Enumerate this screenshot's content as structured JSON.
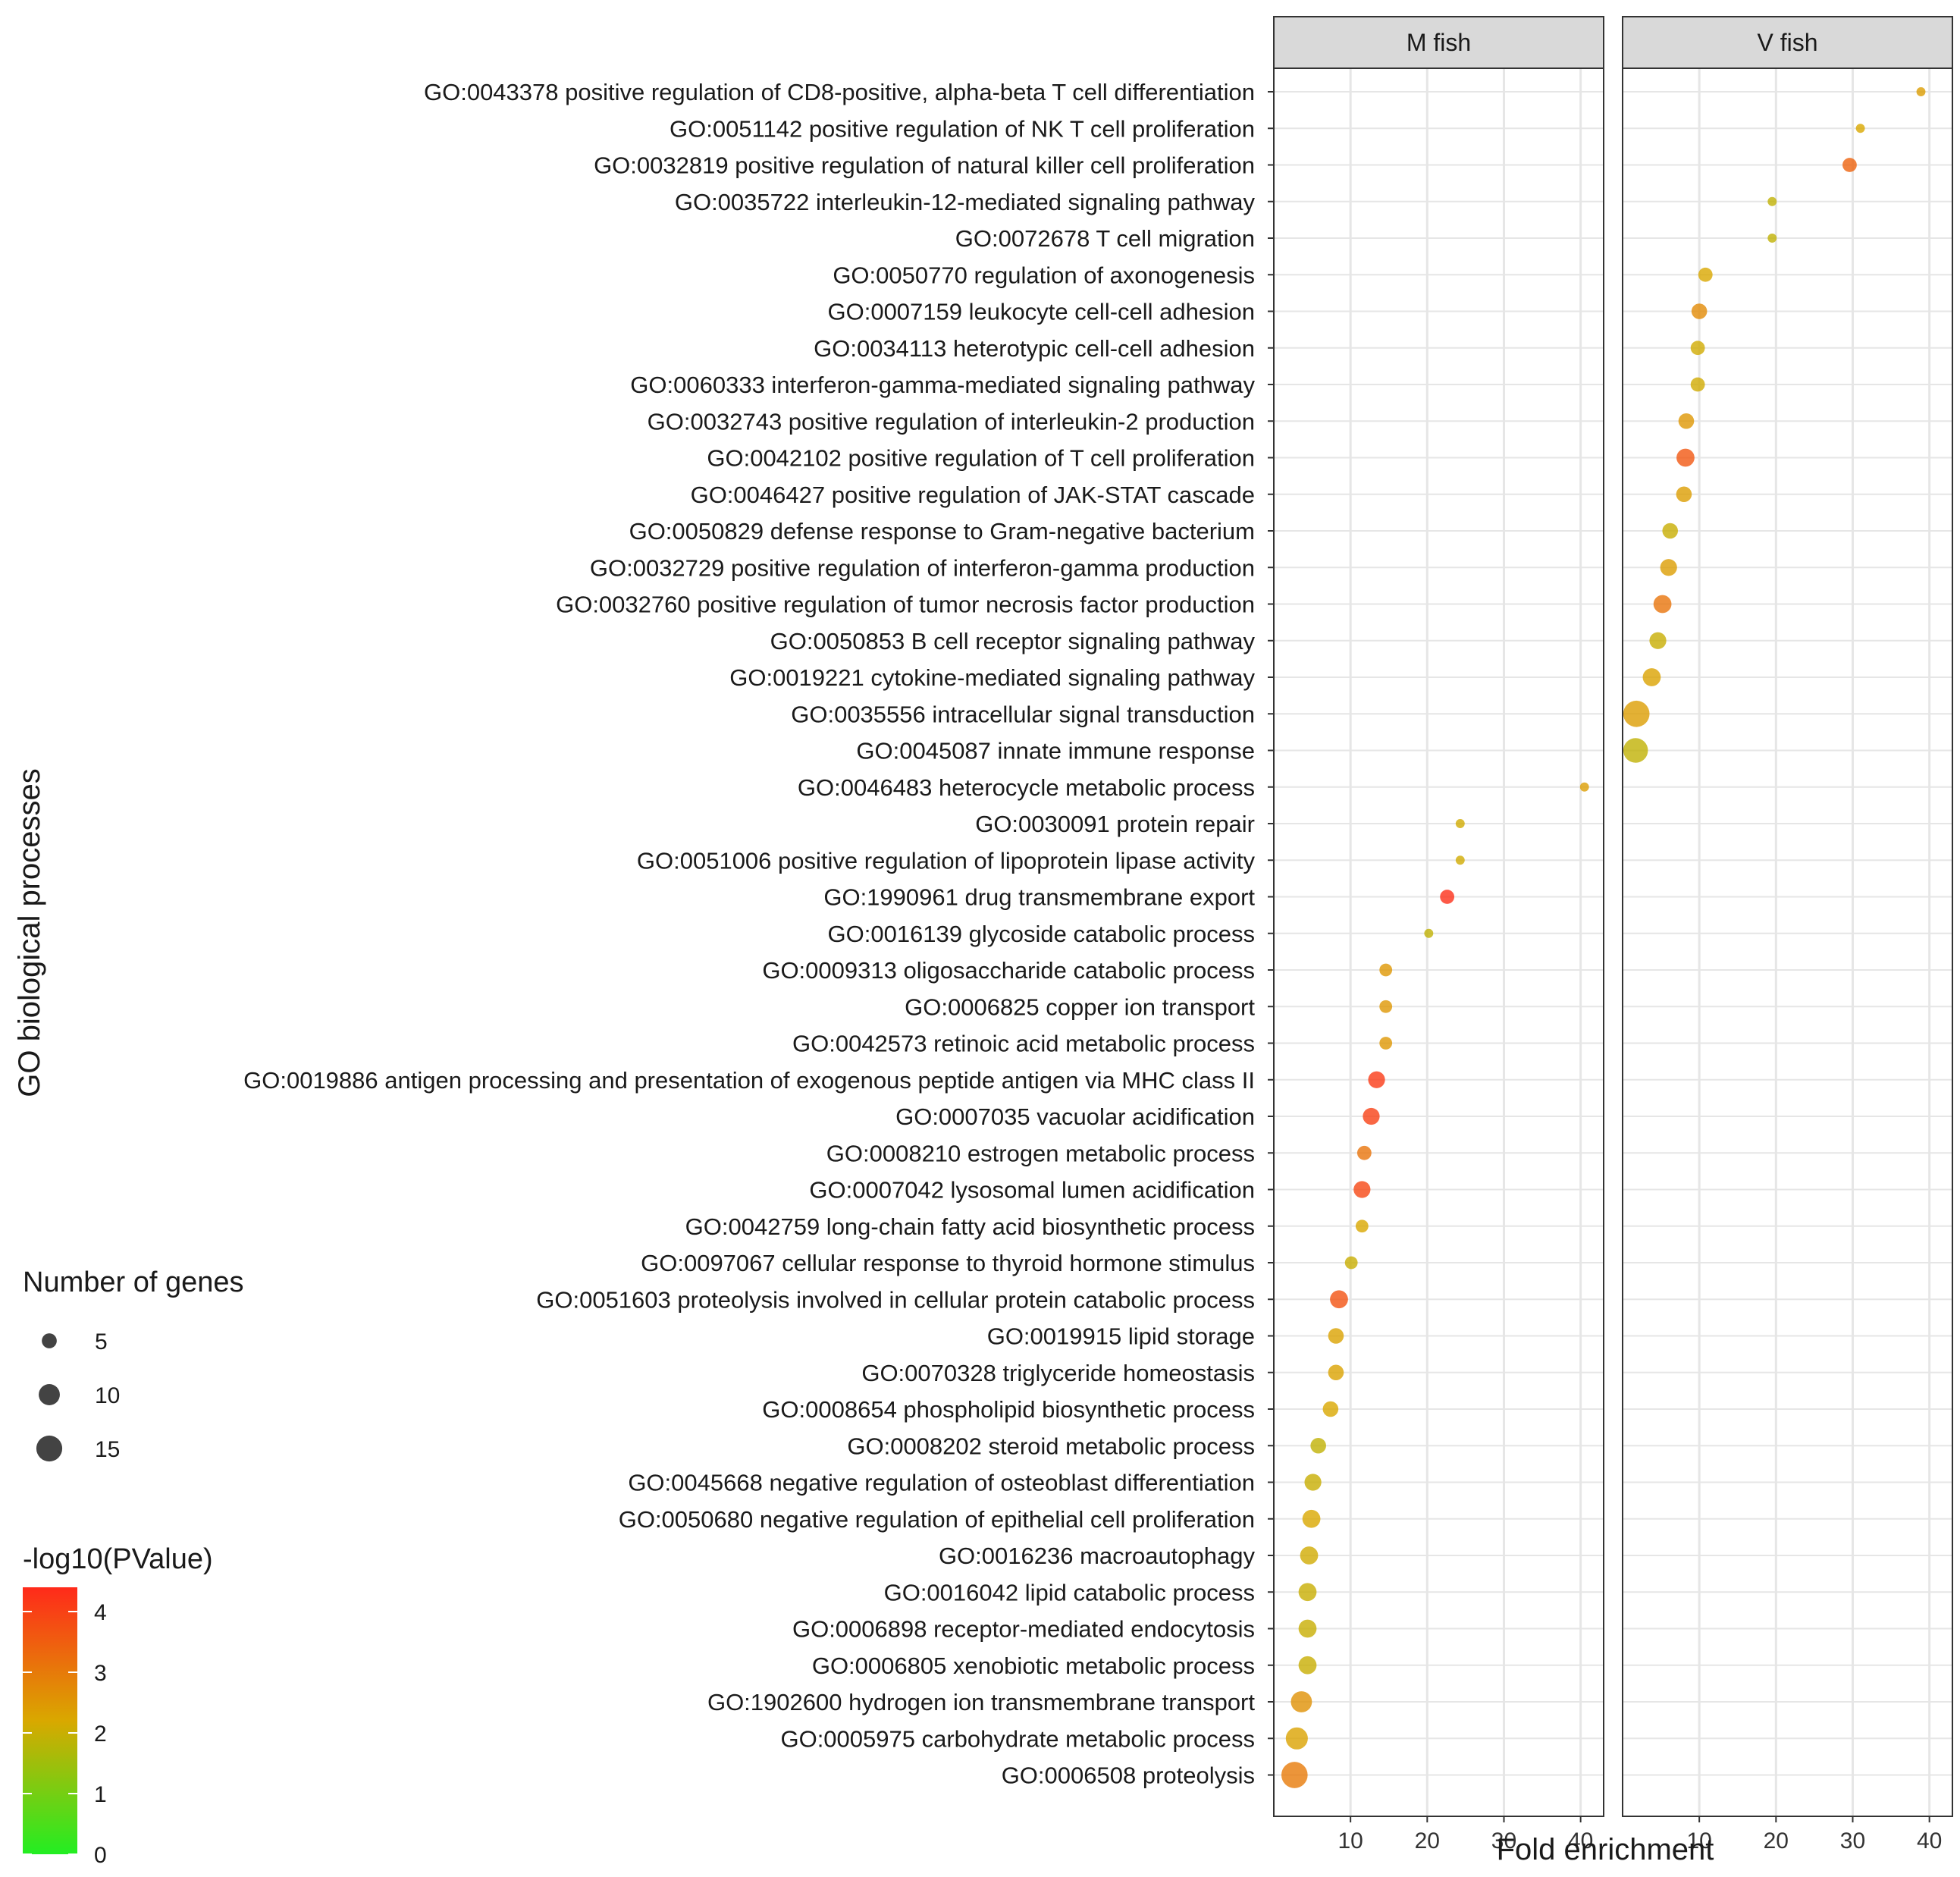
{
  "chart_data": {
    "type": "scatter",
    "subtype": "faceted-dot-plot",
    "xlabel": "Fold enrichment",
    "ylabel": "GO biological processes",
    "xlim": [
      0,
      43
    ],
    "x_ticks": [
      10,
      20,
      30,
      40
    ],
    "grid": true,
    "facets": [
      "M fish",
      "V fish"
    ],
    "categories": [
      "GO:0043378 positive regulation of CD8-positive, alpha-beta T cell differentiation",
      "GO:0051142 positive regulation of NK T cell proliferation",
      "GO:0032819 positive regulation of natural killer cell proliferation",
      "GO:0035722 interleukin-12-mediated signaling pathway",
      "GO:0072678 T cell migration",
      "GO:0050770 regulation of axonogenesis",
      "GO:0007159 leukocyte cell-cell adhesion",
      "GO:0034113 heterotypic cell-cell adhesion",
      "GO:0060333 interferon-gamma-mediated signaling pathway",
      "GO:0032743 positive regulation of interleukin-2 production",
      "GO:0042102 positive regulation of T cell proliferation",
      "GO:0046427 positive regulation of JAK-STAT cascade",
      "GO:0050829 defense response to Gram-negative bacterium",
      "GO:0032729 positive regulation of interferon-gamma production",
      "GO:0032760 positive regulation of tumor necrosis factor production",
      "GO:0050853 B cell receptor signaling pathway",
      "GO:0019221 cytokine-mediated signaling pathway",
      "GO:0035556 intracellular signal transduction",
      "GO:0045087 innate immune response",
      "GO:0046483 heterocycle metabolic process",
      "GO:0030091 protein repair",
      "GO:0051006 positive regulation of lipoprotein lipase activity",
      "GO:1990961 drug transmembrane export",
      "GO:0016139 glycoside catabolic process",
      "GO:0009313 oligosaccharide catabolic process",
      "GO:0006825 copper ion transport",
      "GO:0042573 retinoic acid metabolic process",
      "GO:0019886 antigen processing and presentation of exogenous peptide antigen via MHC class II",
      "GO:0007035 vacuolar acidification",
      "GO:0008210 estrogen metabolic process",
      "GO:0007042 lysosomal lumen acidification",
      "GO:0042759 long-chain fatty acid biosynthetic process",
      "GO:0097067 cellular response to thyroid hormone stimulus",
      "GO:0051603 proteolysis involved in cellular protein catabolic process",
      "GO:0019915 lipid storage",
      "GO:0070328 triglyceride homeostasis",
      "GO:0008654 phospholipid biosynthetic process",
      "GO:0008202 steroid metabolic process",
      "GO:0045668 negative regulation of osteoblast differentiation",
      "GO:0050680 negative regulation of epithelial cell proliferation",
      "GO:0016236 macroautophagy",
      "GO:0016042 lipid catabolic process",
      "GO:0006898 receptor-mediated endocytosis",
      "GO:0006805 xenobiotic metabolic process",
      "GO:1902600 hydrogen ion transmembrane transport",
      "GO:0005975 carbohydrate metabolic process",
      "GO:0006508 proteolysis"
    ],
    "series": [
      {
        "name": "M fish",
        "points": [
          {
            "term_index": 19,
            "fold": 40.5,
            "genes": 2,
            "neg_log10_p": 2.4
          },
          {
            "term_index": 20,
            "fold": 24.3,
            "genes": 2,
            "neg_log10_p": 2.1
          },
          {
            "term_index": 21,
            "fold": 24.3,
            "genes": 2,
            "neg_log10_p": 2.1
          },
          {
            "term_index": 22,
            "fold": 22.6,
            "genes": 5,
            "neg_log10_p": 4.3
          },
          {
            "term_index": 23,
            "fold": 20.2,
            "genes": 2,
            "neg_log10_p": 1.9
          },
          {
            "term_index": 24,
            "fold": 14.6,
            "genes": 4,
            "neg_log10_p": 2.5
          },
          {
            "term_index": 25,
            "fold": 14.6,
            "genes": 4,
            "neg_log10_p": 2.5
          },
          {
            "term_index": 26,
            "fold": 14.6,
            "genes": 4,
            "neg_log10_p": 2.5
          },
          {
            "term_index": 27,
            "fold": 13.4,
            "genes": 7,
            "neg_log10_p": 4.1
          },
          {
            "term_index": 28,
            "fold": 12.7,
            "genes": 7,
            "neg_log10_p": 4.0
          },
          {
            "term_index": 29,
            "fold": 11.8,
            "genes": 5,
            "neg_log10_p": 3.1
          },
          {
            "term_index": 30,
            "fold": 11.5,
            "genes": 7,
            "neg_log10_p": 3.9
          },
          {
            "term_index": 31,
            "fold": 11.5,
            "genes": 4,
            "neg_log10_p": 2.2
          },
          {
            "term_index": 32,
            "fold": 10.1,
            "genes": 4,
            "neg_log10_p": 2.0
          },
          {
            "term_index": 33,
            "fold": 8.5,
            "genes": 8,
            "neg_log10_p": 3.7
          },
          {
            "term_index": 34,
            "fold": 8.1,
            "genes": 6,
            "neg_log10_p": 2.3
          },
          {
            "term_index": 35,
            "fold": 8.1,
            "genes": 6,
            "neg_log10_p": 2.3
          },
          {
            "term_index": 36,
            "fold": 7.4,
            "genes": 6,
            "neg_log10_p": 2.2
          },
          {
            "term_index": 37,
            "fold": 5.8,
            "genes": 6,
            "neg_log10_p": 1.9
          },
          {
            "term_index": 38,
            "fold": 5.1,
            "genes": 7,
            "neg_log10_p": 2.0
          },
          {
            "term_index": 39,
            "fold": 4.9,
            "genes": 8,
            "neg_log10_p": 2.2
          },
          {
            "term_index": 40,
            "fold": 4.6,
            "genes": 8,
            "neg_log10_p": 2.1
          },
          {
            "term_index": 41,
            "fold": 4.4,
            "genes": 8,
            "neg_log10_p": 2.0
          },
          {
            "term_index": 42,
            "fold": 4.4,
            "genes": 8,
            "neg_log10_p": 2.0
          },
          {
            "term_index": 43,
            "fold": 4.4,
            "genes": 8,
            "neg_log10_p": 2.0
          },
          {
            "term_index": 44,
            "fold": 3.6,
            "genes": 11,
            "neg_log10_p": 2.6
          },
          {
            "term_index": 45,
            "fold": 3.0,
            "genes": 12,
            "neg_log10_p": 2.3
          },
          {
            "term_index": 46,
            "fold": 2.7,
            "genes": 17,
            "neg_log10_p": 3.0
          }
        ]
      },
      {
        "name": "V fish",
        "points": [
          {
            "term_index": 0,
            "fold": 38.9,
            "genes": 2,
            "neg_log10_p": 2.4
          },
          {
            "term_index": 1,
            "fold": 31.0,
            "genes": 2,
            "neg_log10_p": 2.2
          },
          {
            "term_index": 2,
            "fold": 29.6,
            "genes": 5,
            "neg_log10_p": 3.4
          },
          {
            "term_index": 3,
            "fold": 19.5,
            "genes": 2,
            "neg_log10_p": 1.9
          },
          {
            "term_index": 4,
            "fold": 19.5,
            "genes": 2,
            "neg_log10_p": 1.9
          },
          {
            "term_index": 5,
            "fold": 10.8,
            "genes": 5,
            "neg_log10_p": 2.2
          },
          {
            "term_index": 6,
            "fold": 10.0,
            "genes": 6,
            "neg_log10_p": 2.7
          },
          {
            "term_index": 7,
            "fold": 9.8,
            "genes": 5,
            "neg_log10_p": 2.1
          },
          {
            "term_index": 8,
            "fold": 9.8,
            "genes": 5,
            "neg_log10_p": 2.1
          },
          {
            "term_index": 9,
            "fold": 8.3,
            "genes": 6,
            "neg_log10_p": 2.5
          },
          {
            "term_index": 10,
            "fold": 8.2,
            "genes": 8,
            "neg_log10_p": 3.6
          },
          {
            "term_index": 11,
            "fold": 8.0,
            "genes": 6,
            "neg_log10_p": 2.4
          },
          {
            "term_index": 12,
            "fold": 6.2,
            "genes": 6,
            "neg_log10_p": 2.0
          },
          {
            "term_index": 13,
            "fold": 6.0,
            "genes": 7,
            "neg_log10_p": 2.4
          },
          {
            "term_index": 14,
            "fold": 5.2,
            "genes": 8,
            "neg_log10_p": 3.1
          },
          {
            "term_index": 15,
            "fold": 4.6,
            "genes": 7,
            "neg_log10_p": 2.0
          },
          {
            "term_index": 16,
            "fold": 3.8,
            "genes": 8,
            "neg_log10_p": 2.3
          },
          {
            "term_index": 17,
            "fold": 1.8,
            "genes": 17,
            "neg_log10_p": 2.4
          },
          {
            "term_index": 18,
            "fold": 1.7,
            "genes": 15,
            "neg_log10_p": 1.9
          }
        ]
      }
    ],
    "size_legend": {
      "title": "Number of genes",
      "values": [
        5,
        10,
        15
      ],
      "labels": [
        "5",
        "10",
        "15"
      ]
    },
    "color_legend": {
      "title": "-log10(PValue)",
      "min": 0,
      "max": 4.4,
      "ticks": [
        0,
        1,
        2,
        3,
        4
      ],
      "tick_labels": [
        "0",
        "1",
        "2",
        "3",
        "4"
      ],
      "low_color": "#22ee22",
      "mid_color": "#d9a800",
      "high_color": "#ff2a1a"
    },
    "colors": {
      "panel_border": "#333333",
      "strip_fill": "#d9d9d9",
      "grid": "#e6e6e6",
      "size_key_fill": "#222222"
    }
  }
}
